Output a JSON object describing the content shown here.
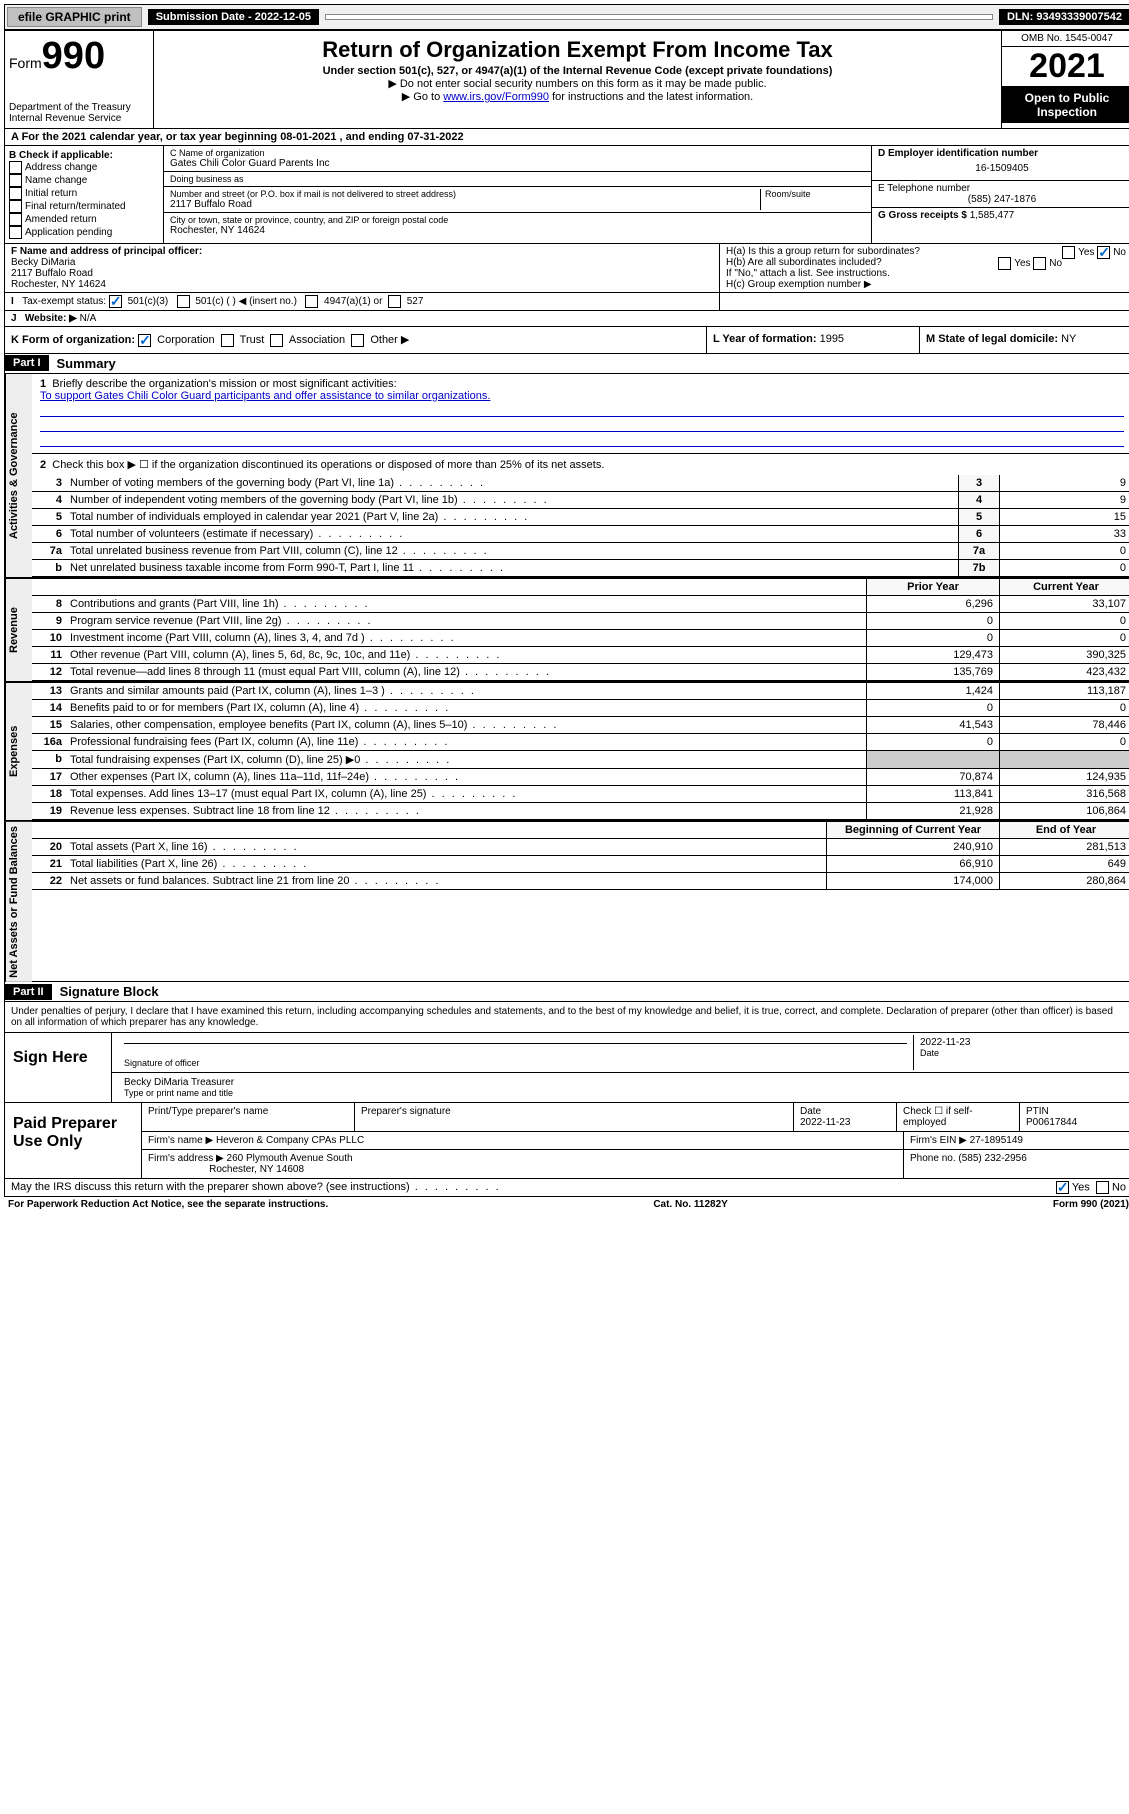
{
  "topbar": {
    "efile": "efile GRAPHIC print",
    "submission_label": "Submission Date - 2022-12-05",
    "dln": "DLN: 93493339007542"
  },
  "header": {
    "form_prefix": "Form",
    "form_number": "990",
    "dept": "Department of the Treasury",
    "irs": "Internal Revenue Service",
    "title": "Return of Organization Exempt From Income Tax",
    "subtitle": "Under section 501(c), 527, or 4947(a)(1) of the Internal Revenue Code (except private foundations)",
    "note1": "▶ Do not enter social security numbers on this form as it may be made public.",
    "note2_pre": "▶ Go to ",
    "note2_link": "www.irs.gov/Form990",
    "note2_post": " for instructions and the latest information.",
    "omb": "OMB No. 1545-0047",
    "year": "2021",
    "inspect": "Open to Public Inspection"
  },
  "period": {
    "text": "A For the 2021 calendar year, or tax year beginning 08-01-2021   , and ending 07-31-2022"
  },
  "box_b": {
    "heading": "B Check if applicable:",
    "opts": [
      "Address change",
      "Name change",
      "Initial return",
      "Final return/terminated",
      "Amended return",
      "Application pending"
    ]
  },
  "box_c": {
    "name_label": "C Name of organization",
    "name": "Gates Chili Color Guard Parents Inc",
    "dba_label": "Doing business as",
    "dba": "",
    "addr_label": "Number and street (or P.O. box if mail is not delivered to street address)",
    "room_label": "Room/suite",
    "addr": "2117 Buffalo Road",
    "city_label": "City or town, state or province, country, and ZIP or foreign postal code",
    "city": "Rochester, NY  14624"
  },
  "box_d": {
    "label": "D Employer identification number",
    "ein": "16-1509405"
  },
  "box_e": {
    "label": "E Telephone number",
    "phone": "(585) 247-1876"
  },
  "box_g": {
    "label": "G Gross receipts $",
    "amount": "1,585,477"
  },
  "box_f": {
    "label": "F  Name and address of principal officer:",
    "name": "Becky DiMaria",
    "addr1": "2117 Buffalo Road",
    "addr2": "Rochester, NY  14624"
  },
  "box_h": {
    "ha": "H(a)  Is this a group return for subordinates?",
    "hb": "H(b)  Are all subordinates included?",
    "hb_note": "If \"No,\" attach a list. See instructions.",
    "hc": "H(c)  Group exemption number ▶",
    "yes": "Yes",
    "no": "No"
  },
  "box_i": {
    "label": "Tax-exempt status:",
    "opts": [
      "501(c)(3)",
      "501(c) (  ) ◀ (insert no.)",
      "4947(a)(1) or",
      "527"
    ]
  },
  "box_j": {
    "label": "Website: ▶",
    "value": "N/A"
  },
  "box_k": {
    "label": "K Form of organization:",
    "opts": [
      "Corporation",
      "Trust",
      "Association",
      "Other ▶"
    ],
    "l_label": "L Year of formation:",
    "l_val": "1995",
    "m_label": "M State of legal domicile:",
    "m_val": "NY"
  },
  "part1": {
    "header": "Part I",
    "title": "Summary",
    "line1_label": "Briefly describe the organization's mission or most significant activities:",
    "mission": "To support Gates Chili Color Guard participants and offer assistance to similar organizations.",
    "line2": "Check this box ▶ ☐  if the organization discontinued its operations or disposed of more than 25% of its net assets.",
    "labels": {
      "gov": "Activities & Governance",
      "rev": "Revenue",
      "exp": "Expenses",
      "na": "Net Assets or Fund Balances"
    },
    "rows": [
      {
        "n": "3",
        "d": "Number of voting members of the governing body (Part VI, line 1a)",
        "box": "3",
        "v": "9"
      },
      {
        "n": "4",
        "d": "Number of independent voting members of the governing body (Part VI, line 1b)",
        "box": "4",
        "v": "9"
      },
      {
        "n": "5",
        "d": "Total number of individuals employed in calendar year 2021 (Part V, line 2a)",
        "box": "5",
        "v": "15"
      },
      {
        "n": "6",
        "d": "Total number of volunteers (estimate if necessary)",
        "box": "6",
        "v": "33"
      },
      {
        "n": "7a",
        "d": "Total unrelated business revenue from Part VIII, column (C), line 12",
        "box": "7a",
        "v": "0"
      },
      {
        "n": "b",
        "d": "Net unrelated business taxable income from Form 990-T, Part I, line 11",
        "box": "7b",
        "v": "0"
      }
    ],
    "col_headers": {
      "prior": "Prior Year",
      "current": "Current Year"
    },
    "rev_rows": [
      {
        "n": "8",
        "d": "Contributions and grants (Part VIII, line 1h)",
        "p": "6,296",
        "c": "33,107"
      },
      {
        "n": "9",
        "d": "Program service revenue (Part VIII, line 2g)",
        "p": "0",
        "c": "0"
      },
      {
        "n": "10",
        "d": "Investment income (Part VIII, column (A), lines 3, 4, and 7d )",
        "p": "0",
        "c": "0"
      },
      {
        "n": "11",
        "d": "Other revenue (Part VIII, column (A), lines 5, 6d, 8c, 9c, 10c, and 11e)",
        "p": "129,473",
        "c": "390,325"
      },
      {
        "n": "12",
        "d": "Total revenue—add lines 8 through 11 (must equal Part VIII, column (A), line 12)",
        "p": "135,769",
        "c": "423,432"
      }
    ],
    "exp_rows": [
      {
        "n": "13",
        "d": "Grants and similar amounts paid (Part IX, column (A), lines 1–3 )",
        "p": "1,424",
        "c": "113,187"
      },
      {
        "n": "14",
        "d": "Benefits paid to or for members (Part IX, column (A), line 4)",
        "p": "0",
        "c": "0"
      },
      {
        "n": "15",
        "d": "Salaries, other compensation, employee benefits (Part IX, column (A), lines 5–10)",
        "p": "41,543",
        "c": "78,446"
      },
      {
        "n": "16a",
        "d": "Professional fundraising fees (Part IX, column (A), line 11e)",
        "p": "0",
        "c": "0"
      },
      {
        "n": "b",
        "d": "Total fundraising expenses (Part IX, column (D), line 25) ▶0",
        "p": "",
        "c": "",
        "shade": true
      },
      {
        "n": "17",
        "d": "Other expenses (Part IX, column (A), lines 11a–11d, 11f–24e)",
        "p": "70,874",
        "c": "124,935"
      },
      {
        "n": "18",
        "d": "Total expenses. Add lines 13–17 (must equal Part IX, column (A), line 25)",
        "p": "113,841",
        "c": "316,568"
      },
      {
        "n": "19",
        "d": "Revenue less expenses. Subtract line 18 from line 12",
        "p": "21,928",
        "c": "106,864"
      }
    ],
    "na_headers": {
      "beg": "Beginning of Current Year",
      "end": "End of Year"
    },
    "na_rows": [
      {
        "n": "20",
        "d": "Total assets (Part X, line 16)",
        "p": "240,910",
        "c": "281,513"
      },
      {
        "n": "21",
        "d": "Total liabilities (Part X, line 26)",
        "p": "66,910",
        "c": "649"
      },
      {
        "n": "22",
        "d": "Net assets or fund balances. Subtract line 21 from line 20",
        "p": "174,000",
        "c": "280,864"
      }
    ]
  },
  "part2": {
    "header": "Part II",
    "title": "Signature Block",
    "declaration": "Under penalties of perjury, I declare that I have examined this return, including accompanying schedules and statements, and to the best of my knowledge and belief, it is true, correct, and complete. Declaration of preparer (other than officer) is based on all information of which preparer has any knowledge.",
    "sign_here": "Sign Here",
    "sig_officer": "Signature of officer",
    "sig_date_label": "Date",
    "sig_date": "2022-11-23",
    "officer_name": "Becky DiMaria  Treasurer",
    "type_name": "Type or print name and title",
    "paid_label": "Paid Preparer Use Only",
    "prep_name_label": "Print/Type preparer's name",
    "prep_sig_label": "Preparer's signature",
    "prep_date_label": "Date",
    "prep_date": "2022-11-23",
    "check_self": "Check ☐ if self-employed",
    "ptin_label": "PTIN",
    "ptin": "P00617844",
    "firm_name_label": "Firm's name   ▶",
    "firm_name": "Heveron & Company CPAs PLLC",
    "firm_ein_label": "Firm's EIN ▶",
    "firm_ein": "27-1895149",
    "firm_addr_label": "Firm's address ▶",
    "firm_addr1": "260 Plymouth Avenue South",
    "firm_addr2": "Rochester, NY  14608",
    "firm_phone_label": "Phone no.",
    "firm_phone": "(585) 232-2956",
    "discuss": "May the IRS discuss this return with the preparer shown above? (see instructions)",
    "discuss_yes": "Yes",
    "discuss_no": "No"
  },
  "footer": {
    "pra": "For Paperwork Reduction Act Notice, see the separate instructions.",
    "cat": "Cat. No. 11282Y",
    "form": "Form 990 (2021)"
  }
}
